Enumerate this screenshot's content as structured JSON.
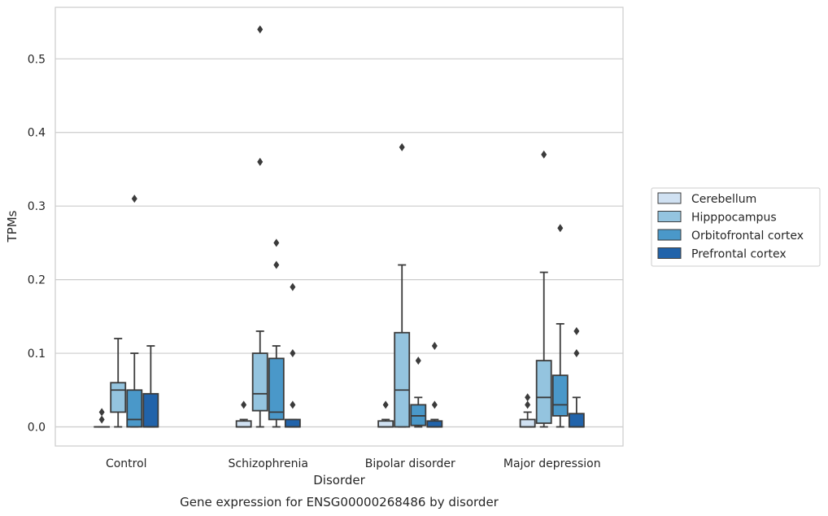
{
  "chart_data": {
    "type": "box",
    "caption": "Gene expression for ENSG00000268486 by disorder",
    "xlabel": "Disorder",
    "ylabel": "TPMs",
    "ylim": [
      -0.026,
      0.57
    ],
    "yticks": [
      0.0,
      0.1,
      0.2,
      0.3,
      0.4,
      0.5
    ],
    "ytick_labels": [
      "0.0",
      "0.1",
      "0.2",
      "0.3",
      "0.4",
      "0.5"
    ],
    "grid": true,
    "legend_position": "right",
    "categories": [
      "Control",
      "Schizophrenia",
      "Bipolar disorder",
      "Major depression"
    ],
    "series": [
      {
        "name": "Cerebellum",
        "color": "#d0e1f2",
        "boxes": [
          {
            "q1": 0.0,
            "median": 0.0,
            "q3": 0.0,
            "whisker_low": 0.0,
            "whisker_high": 0.0,
            "outliers": [
              0.01,
              0.02
            ]
          },
          {
            "q1": 0.0,
            "median": 0.0,
            "q3": 0.008,
            "whisker_low": 0.0,
            "whisker_high": 0.01,
            "outliers": [
              0.03
            ]
          },
          {
            "q1": 0.0,
            "median": 0.0,
            "q3": 0.008,
            "whisker_low": 0.0,
            "whisker_high": 0.01,
            "outliers": [
              0.03
            ]
          },
          {
            "q1": 0.0,
            "median": 0.0,
            "q3": 0.01,
            "whisker_low": 0.0,
            "whisker_high": 0.02,
            "outliers": [
              0.03,
              0.04
            ]
          }
        ]
      },
      {
        "name": "Hipppocampus",
        "color": "#94c4df",
        "boxes": [
          {
            "q1": 0.02,
            "median": 0.05,
            "q3": 0.06,
            "whisker_low": 0.0,
            "whisker_high": 0.12,
            "outliers": []
          },
          {
            "q1": 0.022,
            "median": 0.045,
            "q3": 0.1,
            "whisker_low": 0.0,
            "whisker_high": 0.13,
            "outliers": [
              0.36,
              0.54
            ]
          },
          {
            "q1": 0.0,
            "median": 0.05,
            "q3": 0.128,
            "whisker_low": 0.0,
            "whisker_high": 0.22,
            "outliers": [
              0.38
            ]
          },
          {
            "q1": 0.005,
            "median": 0.04,
            "q3": 0.09,
            "whisker_low": 0.0,
            "whisker_high": 0.21,
            "outliers": [
              0.37
            ]
          }
        ]
      },
      {
        "name": "Orbitofrontal cortex",
        "color": "#4a98c9",
        "boxes": [
          {
            "q1": 0.0,
            "median": 0.01,
            "q3": 0.05,
            "whisker_low": 0.0,
            "whisker_high": 0.1,
            "outliers": [
              0.31
            ]
          },
          {
            "q1": 0.01,
            "median": 0.02,
            "q3": 0.093,
            "whisker_low": 0.0,
            "whisker_high": 0.11,
            "outliers": [
              0.22,
              0.25
            ]
          },
          {
            "q1": 0.002,
            "median": 0.015,
            "q3": 0.03,
            "whisker_low": 0.0,
            "whisker_high": 0.04,
            "outliers": [
              0.09
            ]
          },
          {
            "q1": 0.015,
            "median": 0.03,
            "q3": 0.07,
            "whisker_low": 0.0,
            "whisker_high": 0.14,
            "outliers": [
              0.27
            ]
          }
        ]
      },
      {
        "name": "Prefrontal cortex",
        "color": "#2163aa",
        "boxes": [
          {
            "q1": 0.0,
            "median": 0.0,
            "q3": 0.045,
            "whisker_low": 0.0,
            "whisker_high": 0.11,
            "outliers": []
          },
          {
            "q1": 0.0,
            "median": 0.0,
            "q3": 0.01,
            "whisker_low": 0.0,
            "whisker_high": 0.01,
            "outliers": [
              0.03,
              0.1,
              0.19
            ]
          },
          {
            "q1": 0.0,
            "median": 0.0,
            "q3": 0.008,
            "whisker_low": 0.0,
            "whisker_high": 0.01,
            "outliers": [
              0.03,
              0.11
            ]
          },
          {
            "q1": 0.0,
            "median": 0.0,
            "q3": 0.018,
            "whisker_low": 0.0,
            "whisker_high": 0.04,
            "outliers": [
              0.1,
              0.13
            ]
          }
        ]
      }
    ]
  }
}
